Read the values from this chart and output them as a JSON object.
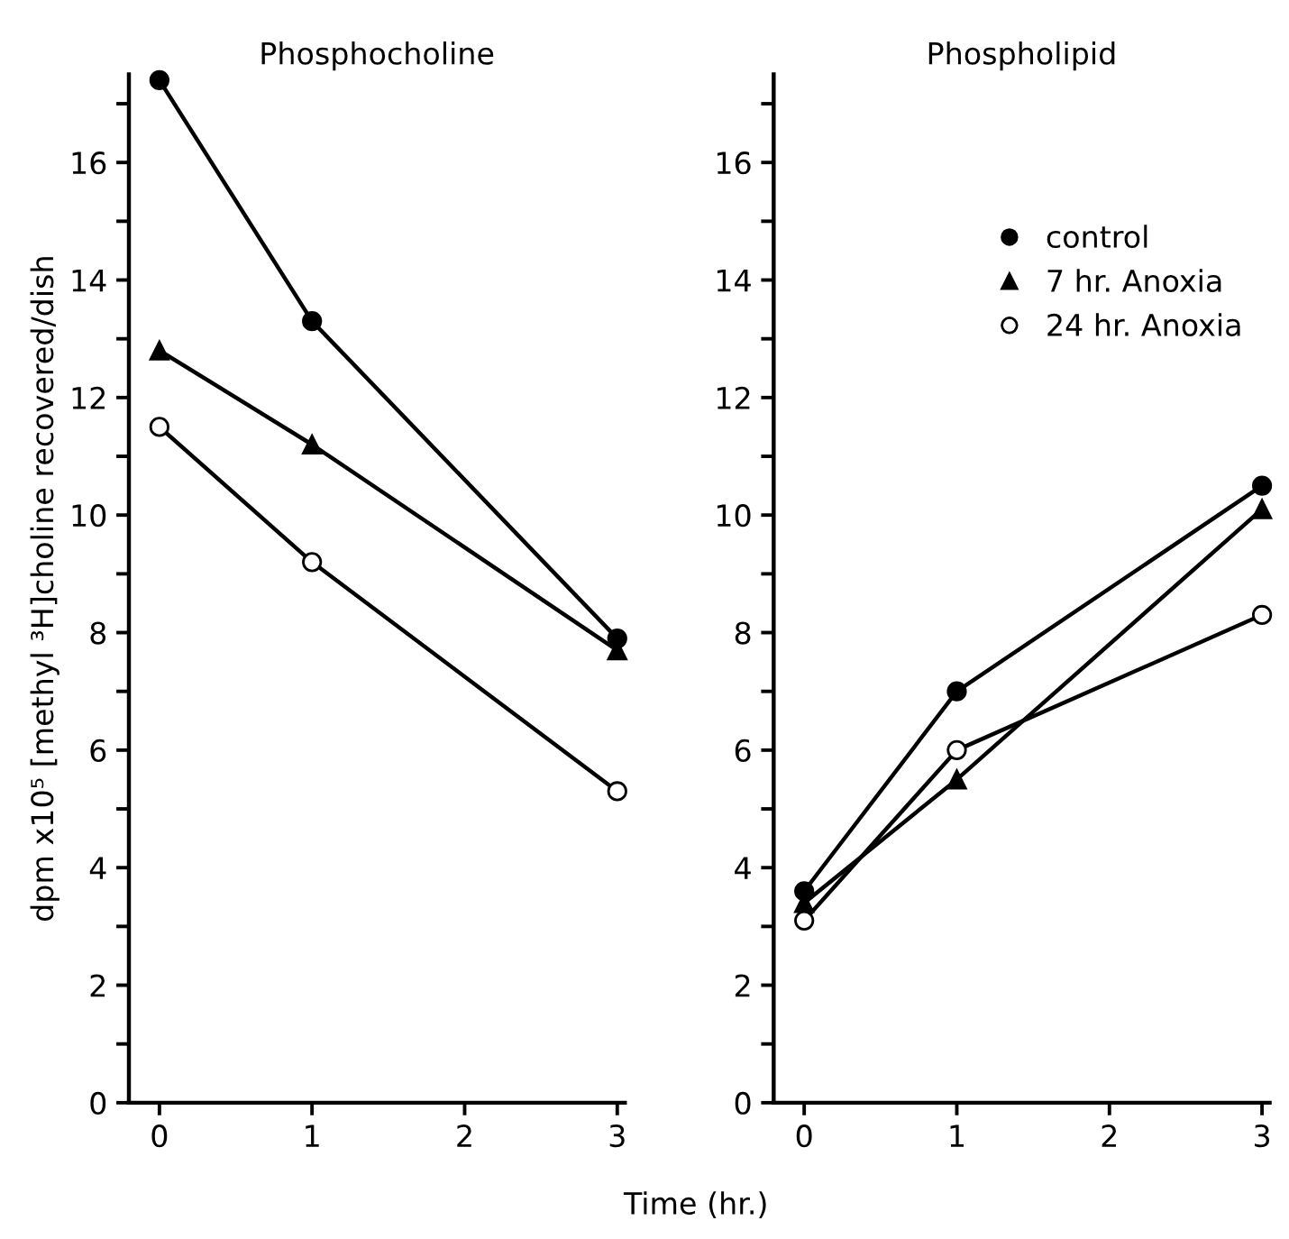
{
  "chart_data": [
    {
      "type": "line",
      "title": "Phosphocholine",
      "xlabel": "Time (hr.)",
      "ylabel": "dpm x10⁵ [methyl ³H]choline recovered/dish",
      "x": [
        0,
        1,
        3
      ],
      "xlim": [
        -0.2,
        3.05
      ],
      "xticks": [
        0,
        1,
        2,
        3
      ],
      "ylim": [
        0,
        17.5
      ],
      "yticks": [
        0,
        {
          "value": 1,
          "label": null
        },
        2,
        {
          "value": 3,
          "label": null
        },
        4,
        {
          "value": 5,
          "label": null
        },
        6,
        {
          "value": 7,
          "label": null
        },
        8,
        {
          "value": 9,
          "label": null
        },
        10,
        {
          "value": 11,
          "label": null
        },
        12,
        {
          "value": 13,
          "label": null
        },
        14,
        {
          "value": 15,
          "label": null
        },
        16,
        {
          "value": 17,
          "label": null
        }
      ],
      "grid": false,
      "legend": false,
      "series": [
        {
          "color": "#000000",
          "marker": "circle",
          "values": [
            17.4,
            13.3,
            7.9
          ]
        },
        {
          "color": "#000000",
          "marker": "triangle",
          "values": [
            12.8,
            11.2,
            7.7
          ]
        },
        {
          "color": "#000000",
          "marker": "circle-open",
          "values": [
            11.5,
            9.2,
            5.3
          ]
        }
      ]
    },
    {
      "type": "line",
      "title": "Phospholipid",
      "x": [
        0,
        1,
        3
      ],
      "xlim": [
        -0.2,
        3.05
      ],
      "xticks": [
        0,
        1,
        2,
        3
      ],
      "ylim": [
        0,
        17.5
      ],
      "yticks": [
        0,
        {
          "value": 1,
          "label": null
        },
        2,
        {
          "value": 3,
          "label": null
        },
        4,
        {
          "value": 5,
          "label": null
        },
        6,
        {
          "value": 7,
          "label": null
        },
        8,
        {
          "value": 9,
          "label": null
        },
        10,
        {
          "value": 11,
          "label": null
        },
        12,
        {
          "value": 13,
          "label": null
        },
        14,
        {
          "value": 15,
          "label": null
        },
        16,
        {
          "value": 17,
          "label": null
        }
      ],
      "grid": false,
      "legend": "top right",
      "series": [
        {
          "name": "control",
          "color": "#000000",
          "marker": "circle",
          "values": [
            3.6,
            7.0,
            10.5
          ]
        },
        {
          "name": "7 hr. Anoxia",
          "color": "#000000",
          "marker": "triangle",
          "values": [
            3.4,
            5.5,
            10.1
          ]
        },
        {
          "name": "24 hr. Anoxia",
          "color": "#000000",
          "marker": "circle-open",
          "values": [
            3.1,
            6.0,
            8.3
          ]
        }
      ]
    }
  ]
}
